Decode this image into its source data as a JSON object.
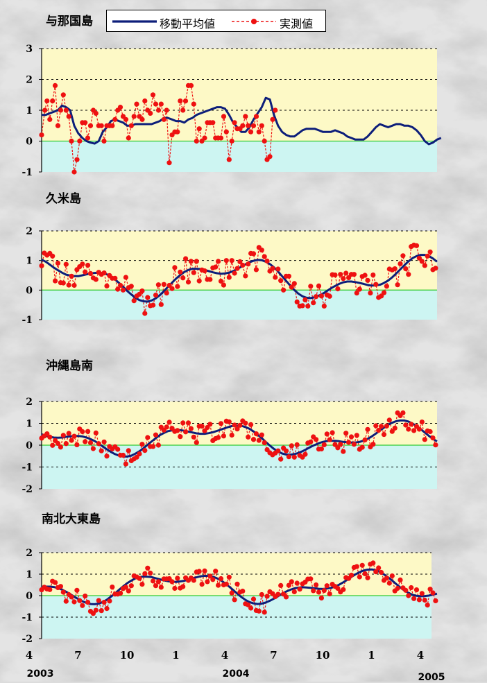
{
  "legend": {
    "ma_label": "移動平均値",
    "obs_label": "実測値"
  },
  "colors": {
    "moving_average": "#0d1e7a",
    "observed": "#ee1111",
    "zero_line": "#33cc33",
    "positive_band": "#fdf9c6",
    "negative_band": "#cdf5f2"
  },
  "x_axis": {
    "month_labels": [
      {
        "index": 0,
        "label": "4"
      },
      {
        "index": 3,
        "label": "7"
      },
      {
        "index": 6,
        "label": "10"
      },
      {
        "index": 9,
        "label": "1"
      },
      {
        "index": 12,
        "label": "4"
      },
      {
        "index": 15,
        "label": "7"
      },
      {
        "index": 18,
        "label": "10"
      },
      {
        "index": 21,
        "label": "1"
      },
      {
        "index": 24,
        "label": "4"
      }
    ],
    "year_labels": [
      {
        "index": 0,
        "label": "2003"
      },
      {
        "index": 12,
        "label": "2004"
      },
      {
        "index": 24,
        "label": "2005"
      }
    ]
  },
  "chart_data": [
    {
      "type": "line",
      "title": "与那国島",
      "ylim": [
        -1,
        3
      ],
      "yticks": [
        -1,
        0,
        1,
        2,
        3
      ],
      "grid": true,
      "series": [
        {
          "name": "移動平均値",
          "points": [
            [
              0,
              0.85
            ],
            [
              0.25,
              0.85
            ],
            [
              0.5,
              0.9
            ],
            [
              0.75,
              0.95
            ],
            [
              1,
              1.0
            ],
            [
              1.25,
              1.15
            ],
            [
              1.5,
              1.1
            ],
            [
              1.75,
              1.0
            ],
            [
              2,
              0.5
            ],
            [
              2.25,
              0.25
            ],
            [
              2.5,
              0.1
            ],
            [
              2.75,
              0.0
            ],
            [
              3,
              -0.05
            ],
            [
              3.25,
              -0.08
            ],
            [
              3.5,
              0.0
            ],
            [
              3.75,
              0.3
            ],
            [
              4,
              0.45
            ],
            [
              4.25,
              0.65
            ],
            [
              4.5,
              0.7
            ],
            [
              4.75,
              0.65
            ],
            [
              5,
              0.6
            ],
            [
              5.25,
              0.5
            ],
            [
              5.5,
              0.5
            ],
            [
              5.75,
              0.55
            ],
            [
              6,
              0.55
            ],
            [
              6.25,
              0.55
            ],
            [
              6.5,
              0.55
            ],
            [
              6.75,
              0.55
            ],
            [
              7,
              0.6
            ],
            [
              7.25,
              0.65
            ],
            [
              7.5,
              0.75
            ],
            [
              7.75,
              0.75
            ],
            [
              8,
              0.7
            ],
            [
              8.25,
              0.65
            ],
            [
              8.5,
              0.65
            ],
            [
              8.75,
              0.6
            ],
            [
              9,
              0.7
            ],
            [
              9.25,
              0.75
            ],
            [
              9.5,
              0.85
            ],
            [
              9.75,
              0.9
            ],
            [
              10,
              0.95
            ],
            [
              10.25,
              1.0
            ],
            [
              10.5,
              1.05
            ],
            [
              10.75,
              1.1
            ],
            [
              11,
              1.1
            ],
            [
              11.25,
              1.05
            ],
            [
              11.5,
              0.85
            ],
            [
              11.75,
              0.6
            ],
            [
              12,
              0.45
            ],
            [
              12.25,
              0.3
            ],
            [
              12.5,
              0.3
            ],
            [
              12.75,
              0.45
            ],
            [
              13,
              0.7
            ],
            [
              13.25,
              0.9
            ],
            [
              13.5,
              1.1
            ],
            [
              13.75,
              1.4
            ],
            [
              14,
              1.35
            ],
            [
              14.25,
              0.85
            ],
            [
              14.5,
              0.5
            ],
            [
              14.75,
              0.3
            ],
            [
              15,
              0.2
            ],
            [
              15.25,
              0.15
            ],
            [
              15.5,
              0.15
            ],
            [
              15.75,
              0.25
            ],
            [
              16,
              0.35
            ],
            [
              16.25,
              0.4
            ],
            [
              16.5,
              0.4
            ],
            [
              16.75,
              0.4
            ],
            [
              17,
              0.35
            ],
            [
              17.25,
              0.3
            ],
            [
              17.5,
              0.3
            ],
            [
              17.75,
              0.3
            ],
            [
              18,
              0.35
            ],
            [
              18.25,
              0.3
            ],
            [
              18.5,
              0.25
            ],
            [
              18.75,
              0.15
            ],
            [
              19,
              0.1
            ],
            [
              19.25,
              0.05
            ],
            [
              19.5,
              0.05
            ],
            [
              19.75,
              0.05
            ],
            [
              20,
              0.15
            ],
            [
              20.25,
              0.3
            ],
            [
              20.5,
              0.45
            ],
            [
              20.75,
              0.55
            ],
            [
              21,
              0.5
            ],
            [
              21.25,
              0.45
            ],
            [
              21.5,
              0.5
            ],
            [
              21.75,
              0.55
            ],
            [
              22,
              0.55
            ],
            [
              22.25,
              0.5
            ],
            [
              22.5,
              0.5
            ],
            [
              22.75,
              0.45
            ],
            [
              23,
              0.35
            ],
            [
              23.25,
              0.2
            ],
            [
              23.5,
              0.0
            ],
            [
              23.75,
              -0.1
            ],
            [
              24,
              -0.05
            ],
            [
              24.25,
              0.05
            ],
            [
              24.5,
              0.1
            ]
          ]
        },
        {
          "name": "実測値",
          "points": [
            [
              0,
              0.2
            ],
            [
              0.2,
              1.0
            ],
            [
              0.33,
              1.3
            ],
            [
              0.5,
              0.7
            ],
            [
              0.67,
              1.3
            ],
            [
              0.83,
              1.8
            ],
            [
              1,
              0.5
            ],
            [
              1.17,
              1.0
            ],
            [
              1.33,
              1.5
            ],
            [
              1.5,
              1.0
            ],
            [
              1.67,
              0.8
            ],
            [
              1.83,
              0.0
            ],
            [
              2,
              -1.0
            ],
            [
              2.17,
              -0.6
            ],
            [
              2.33,
              0.0
            ],
            [
              2.5,
              0.6
            ],
            [
              2.67,
              0.6
            ],
            [
              2.83,
              0.1
            ],
            [
              3,
              0.5
            ],
            [
              3.17,
              1.0
            ],
            [
              3.33,
              0.9
            ],
            [
              3.5,
              0.5
            ],
            [
              3.67,
              0.5
            ],
            [
              3.83,
              0.0
            ],
            [
              4,
              0.5
            ],
            [
              4.17,
              0.5
            ],
            [
              4.33,
              0.5
            ],
            [
              4.5,
              0.7
            ],
            [
              4.67,
              1.0
            ],
            [
              4.83,
              1.1
            ],
            [
              5,
              0.8
            ],
            [
              5.17,
              0.7
            ],
            [
              5.33,
              0.1
            ],
            [
              5.5,
              0.5
            ],
            [
              5.67,
              0.8
            ],
            [
              5.83,
              1.2
            ],
            [
              6,
              0.8
            ],
            [
              6.17,
              0.7
            ],
            [
              6.33,
              1.3
            ],
            [
              6.5,
              1.0
            ],
            [
              6.67,
              0.9
            ],
            [
              6.83,
              1.5
            ],
            [
              7,
              1.2
            ],
            [
              7.17,
              1.0
            ],
            [
              7.33,
              1.2
            ],
            [
              7.5,
              0.7
            ],
            [
              7.67,
              1.0
            ],
            [
              7.83,
              -0.7
            ],
            [
              8,
              0.2
            ],
            [
              8.17,
              0.3
            ],
            [
              8.33,
              0.3
            ],
            [
              8.5,
              1.3
            ],
            [
              8.67,
              1.0
            ],
            [
              8.83,
              1.3
            ],
            [
              9,
              1.8
            ],
            [
              9.17,
              1.8
            ],
            [
              9.33,
              1.2
            ],
            [
              9.5,
              0.0
            ],
            [
              9.67,
              0.4
            ],
            [
              9.83,
              0.0
            ],
            [
              10,
              0.1
            ],
            [
              10.17,
              0.6
            ],
            [
              10.33,
              0.6
            ],
            [
              10.5,
              0.6
            ],
            [
              10.67,
              0.1
            ],
            [
              10.83,
              0.1
            ],
            [
              11,
              0.1
            ],
            [
              11.17,
              0.8
            ],
            [
              11.33,
              0.3
            ],
            [
              11.5,
              -0.6
            ],
            [
              11.67,
              0.0
            ],
            [
              11.83,
              0.6
            ],
            [
              12,
              0.4
            ],
            [
              12.17,
              0.4
            ],
            [
              12.33,
              0.5
            ],
            [
              12.5,
              0.8
            ],
            [
              12.67,
              0.5
            ],
            [
              12.83,
              0.3
            ],
            [
              13,
              0.5
            ],
            [
              13.17,
              0.8
            ],
            [
              13.33,
              0.3
            ],
            [
              13.5,
              0.5
            ],
            [
              13.67,
              0.0
            ],
            [
              13.83,
              -0.6
            ],
            [
              14,
              -0.5
            ],
            [
              14.17,
              0.7
            ],
            [
              14.33,
              1.0
            ]
          ]
        }
      ]
    },
    {
      "type": "line",
      "title": "久米島",
      "ylim": [
        -1,
        2
      ],
      "yticks": [
        -1,
        0,
        1,
        2
      ],
      "grid": true,
      "series": [
        {
          "name": "移動平均値",
          "points": []
        },
        {
          "name": "実測値",
          "points": []
        }
      ]
    },
    {
      "type": "line",
      "title": "沖縄島南",
      "ylim": [
        -2,
        2
      ],
      "yticks": [
        -2,
        -1,
        0,
        1,
        2
      ],
      "grid": true,
      "series": [
        {
          "name": "移動平均値",
          "points": []
        },
        {
          "name": "実測値",
          "points": []
        }
      ]
    },
    {
      "type": "line",
      "title": "南北大東島",
      "ylim": [
        -2,
        2
      ],
      "yticks": [
        -2,
        -1,
        0,
        1,
        2
      ],
      "grid": true,
      "series": [
        {
          "name": "移動平均値",
          "points": []
        },
        {
          "name": "実測値",
          "points": []
        }
      ]
    }
  ]
}
